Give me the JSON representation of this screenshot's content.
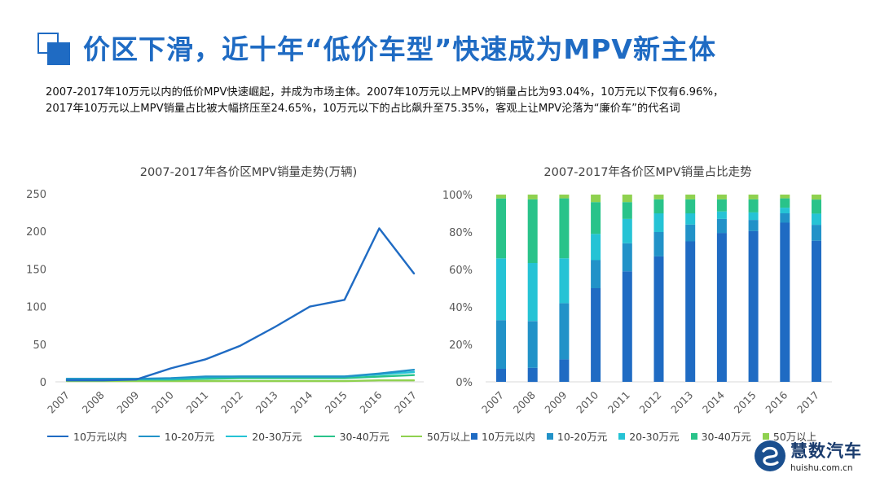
{
  "slide": {
    "title": "价区下滑，近十年“低价车型”快速成为MPV新主体",
    "summary_line1": "2007-2017年10万元以内的低价MPV快速崛起，并成为市场主体。2007年10万元以上MPV的销量占比为93.04%，10万元以下仅有6.96%，",
    "summary_line2": "2017年10万元以上MPV销量占比被大幅挤压至24.65%，10万元以下的占比飙升至75.35%，客观上让MPV沦落为“廉价车”的代名词"
  },
  "logo": {
    "name_cn": "慧数汽车",
    "url": "huishu.com.cn"
  },
  "colors": {
    "accent": "#1f6bc3",
    "s1": "#1f6bc3",
    "s2": "#2192c8",
    "s3": "#25c3d5",
    "s4": "#29c38a",
    "s5": "#8fd14f"
  },
  "chart_data": [
    {
      "type": "line",
      "title": "2007-2017年各价区MPV销量走势(万辆)",
      "x": [
        "2007",
        "2008",
        "2009",
        "2010",
        "2011",
        "2012",
        "2013",
        "2014",
        "2015",
        "2016",
        "2017"
      ],
      "ylim": [
        0,
        250
      ],
      "yticks": [
        0,
        50,
        100,
        150,
        200,
        250
      ],
      "series": [
        {
          "name": "10万元以内",
          "color": "#1f6bc3",
          "values": [
            2,
            2,
            3,
            18,
            30,
            48,
            73,
            100,
            109,
            204,
            144
          ]
        },
        {
          "name": "10-20万元",
          "color": "#2192c8",
          "values": [
            4,
            4,
            4,
            5,
            7,
            7,
            7,
            7,
            7,
            11,
            16
          ]
        },
        {
          "name": "20-30万元",
          "color": "#25c3d5",
          "values": [
            4,
            4,
            4,
            4,
            6,
            7,
            7,
            7,
            7,
            10,
            13
          ]
        },
        {
          "name": "30-40万元",
          "color": "#29c38a",
          "values": [
            3,
            3,
            3,
            3,
            4,
            5,
            5,
            5,
            5,
            7,
            9
          ]
        },
        {
          "name": "50万以上",
          "color": "#8fd14f",
          "values": [
            1,
            1,
            1,
            1,
            1,
            1,
            1,
            1,
            1,
            2,
            2
          ]
        }
      ],
      "grid": false,
      "legend": "bottom"
    },
    {
      "type": "bar",
      "stacked": true,
      "title": "2007-2017年各价区MPV销量占比走势",
      "categories": [
        "2007",
        "2008",
        "2009",
        "2010",
        "2011",
        "2012",
        "2013",
        "2014",
        "2015",
        "2016",
        "2017"
      ],
      "ylim": [
        0,
        100
      ],
      "yticks": [
        "0%",
        "20%",
        "40%",
        "60%",
        "80%",
        "100%"
      ],
      "series": [
        {
          "name": "10万元以内",
          "color": "#1f6bc3",
          "values": [
            6.96,
            7.5,
            12,
            50,
            59,
            67,
            75,
            79.5,
            80.5,
            85,
            75.35
          ]
        },
        {
          "name": "10-20万元",
          "color": "#2192c8",
          "values": [
            26,
            25,
            30,
            15,
            15,
            13,
            9,
            7.5,
            6,
            5,
            8.5
          ]
        },
        {
          "name": "20-30万元",
          "color": "#25c3d5",
          "values": [
            33,
            31,
            24,
            14,
            13,
            10,
            6,
            4,
            4,
            3,
            6
          ]
        },
        {
          "name": "30-40万元",
          "color": "#29c38a",
          "values": [
            32,
            34,
            32,
            17,
            9,
            7.5,
            7.5,
            6.5,
            7,
            5,
            7.5
          ]
        },
        {
          "name": "50万以上",
          "color": "#8fd14f",
          "values": [
            2.04,
            2.5,
            2,
            4,
            4,
            2.5,
            2.5,
            2.5,
            2.5,
            2,
            2.65
          ]
        }
      ],
      "grid": false,
      "legend": "bottom"
    }
  ]
}
